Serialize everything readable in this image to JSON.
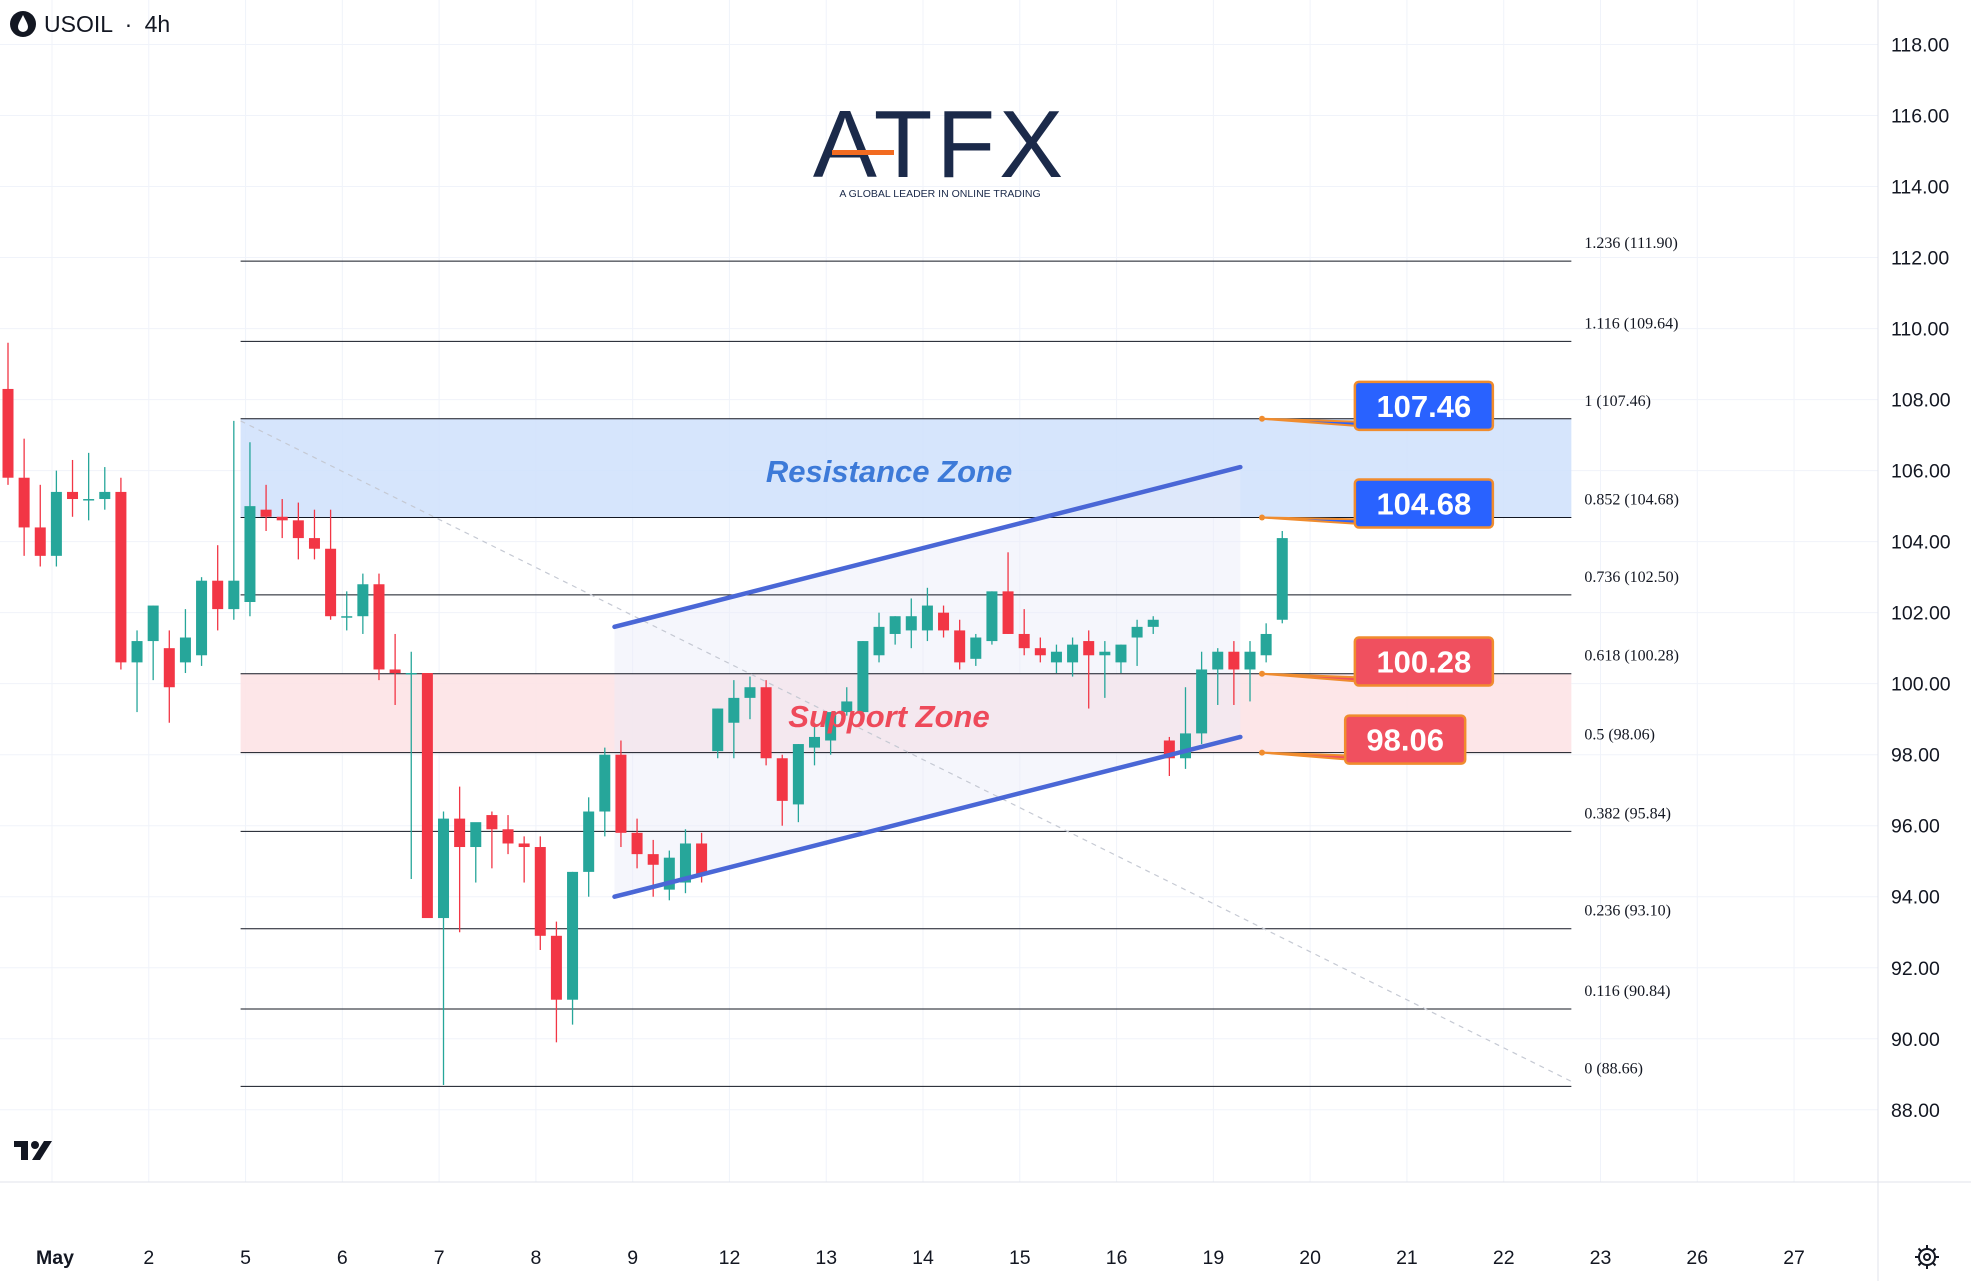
{
  "header": {
    "symbol": "USOIL",
    "separator": "·",
    "interval": "4h"
  },
  "logo": {
    "brand": "ATFX",
    "tagline": "A GLOBAL LEADER IN ONLINE TRADING"
  },
  "colors": {
    "up": "#26a69a",
    "down": "#f23645",
    "resistance_fill": "#cfe0fb",
    "support_fill": "#fde3e5",
    "channel": "#4a67d6",
    "label_blue": "#2962ff",
    "label_red": "#f0505f",
    "label_border": "#f08c2e"
  },
  "icons": {
    "tv_logo": "tradingview-logo-icon",
    "settings": "gear-icon"
  },
  "chart_data": {
    "type": "candlestick",
    "title": "USOIL · 4h",
    "y_axis": {
      "ylim": [
        86.0,
        119.5
      ],
      "ticks": [
        "88.00",
        "90.00",
        "92.00",
        "94.00",
        "96.00",
        "98.00",
        "100.00",
        "102.00",
        "104.00",
        "106.00",
        "108.00",
        "110.00",
        "112.00",
        "114.00",
        "116.00",
        "118.00"
      ]
    },
    "x_axis": {
      "ticks": [
        {
          "x": 0,
          "label": "May"
        },
        {
          "x": 6,
          "label": "2"
        },
        {
          "x": 12,
          "label": "5"
        },
        {
          "x": 18,
          "label": "6"
        },
        {
          "x": 24,
          "label": "7"
        },
        {
          "x": 30,
          "label": "8"
        },
        {
          "x": 36,
          "label": "9"
        },
        {
          "x": 42,
          "label": "12"
        },
        {
          "x": 48,
          "label": "13"
        },
        {
          "x": 54,
          "label": "14"
        },
        {
          "x": 60,
          "label": "15"
        },
        {
          "x": 66,
          "label": "16"
        },
        {
          "x": 72,
          "label": "19"
        },
        {
          "x": 78,
          "label": "20"
        },
        {
          "x": 84,
          "label": "21"
        },
        {
          "x": 90,
          "label": "22"
        },
        {
          "x": 96,
          "label": "23"
        },
        {
          "x": 102,
          "label": "26"
        },
        {
          "x": 108,
          "label": "27"
        }
      ]
    },
    "candles": [
      {
        "o": 108.3,
        "h": 109.6,
        "l": 105.6,
        "c": 105.8
      },
      {
        "o": 105.8,
        "h": 106.9,
        "l": 103.6,
        "c": 104.4
      },
      {
        "o": 104.4,
        "h": 105.6,
        "l": 103.3,
        "c": 103.6
      },
      {
        "o": 103.6,
        "h": 106.0,
        "l": 103.3,
        "c": 105.4
      },
      {
        "o": 105.4,
        "h": 106.3,
        "l": 104.7,
        "c": 105.2
      },
      {
        "o": 105.2,
        "h": 106.5,
        "l": 104.6,
        "c": 105.2
      },
      {
        "o": 105.2,
        "h": 106.1,
        "l": 104.9,
        "c": 105.4
      },
      {
        "o": 105.4,
        "h": 105.8,
        "l": 100.4,
        "c": 100.6
      },
      {
        "o": 100.6,
        "h": 101.5,
        "l": 99.2,
        "c": 101.2
      },
      {
        "o": 101.2,
        "h": 102.2,
        "l": 100.1,
        "c": 102.2
      },
      {
        "o": 101.0,
        "h": 101.5,
        "l": 98.9,
        "c": 99.9
      },
      {
        "o": 100.6,
        "h": 102.1,
        "l": 100.3,
        "c": 101.3
      },
      {
        "o": 100.8,
        "h": 103.0,
        "l": 100.5,
        "c": 102.9
      },
      {
        "o": 102.9,
        "h": 103.9,
        "l": 101.5,
        "c": 102.1
      },
      {
        "o": 102.1,
        "h": 107.4,
        "l": 101.8,
        "c": 102.9
      },
      {
        "o": 102.3,
        "h": 106.8,
        "l": 101.9,
        "c": 105.0
      },
      {
        "o": 104.9,
        "h": 105.6,
        "l": 104.3,
        "c": 104.7
      },
      {
        "o": 104.7,
        "h": 105.2,
        "l": 104.1,
        "c": 104.6
      },
      {
        "o": 104.6,
        "h": 105.1,
        "l": 103.5,
        "c": 104.1
      },
      {
        "o": 104.1,
        "h": 104.9,
        "l": 103.5,
        "c": 103.8
      },
      {
        "o": 103.8,
        "h": 104.9,
        "l": 101.8,
        "c": 101.9
      },
      {
        "o": 101.9,
        "h": 102.6,
        "l": 101.5,
        "c": 101.9
      },
      {
        "o": 101.9,
        "h": 103.1,
        "l": 101.4,
        "c": 102.8
      },
      {
        "o": 102.8,
        "h": 103.1,
        "l": 100.1,
        "c": 100.4
      },
      {
        "o": 100.4,
        "h": 101.4,
        "l": 99.4,
        "c": 100.3
      },
      {
        "o": 100.3,
        "h": 100.9,
        "l": 94.5,
        "c": 100.3
      },
      {
        "o": 100.3,
        "h": 100.3,
        "l": 93.4,
        "c": 93.4
      },
      {
        "o": 93.4,
        "h": 96.4,
        "l": 88.7,
        "c": 96.2
      },
      {
        "o": 96.2,
        "h": 97.1,
        "l": 93.0,
        "c": 95.4
      },
      {
        "o": 95.4,
        "h": 96.0,
        "l": 94.4,
        "c": 96.1
      },
      {
        "o": 96.3,
        "h": 96.4,
        "l": 94.8,
        "c": 95.9
      },
      {
        "o": 95.9,
        "h": 96.3,
        "l": 95.2,
        "c": 95.5
      },
      {
        "o": 95.5,
        "h": 95.7,
        "l": 94.4,
        "c": 95.4
      },
      {
        "o": 95.4,
        "h": 95.7,
        "l": 92.5,
        "c": 92.9
      },
      {
        "o": 92.9,
        "h": 93.3,
        "l": 89.9,
        "c": 91.1
      },
      {
        "o": 91.1,
        "h": 94.7,
        "l": 90.4,
        "c": 94.7
      },
      {
        "o": 94.7,
        "h": 96.8,
        "l": 94.0,
        "c": 96.4
      },
      {
        "o": 96.4,
        "h": 98.2,
        "l": 95.7,
        "c": 98.0
      },
      {
        "o": 98.0,
        "h": 98.4,
        "l": 95.4,
        "c": 95.8
      },
      {
        "o": 95.8,
        "h": 96.2,
        "l": 94.8,
        "c": 95.2
      },
      {
        "o": 95.2,
        "h": 95.6,
        "l": 94.0,
        "c": 94.9
      },
      {
        "o": 94.2,
        "h": 95.3,
        "l": 93.9,
        "c": 95.1
      },
      {
        "o": 94.4,
        "h": 95.9,
        "l": 94.1,
        "c": 95.5
      },
      {
        "o": 95.5,
        "h": 95.8,
        "l": 94.4,
        "c": 94.6
      },
      {
        "o": 98.1,
        "h": 99.3,
        "l": 97.9,
        "c": 99.3
      },
      {
        "o": 98.9,
        "h": 100.1,
        "l": 97.9,
        "c": 99.6
      },
      {
        "o": 99.6,
        "h": 100.2,
        "l": 99.0,
        "c": 99.9
      },
      {
        "o": 99.9,
        "h": 100.1,
        "l": 97.7,
        "c": 97.9
      },
      {
        "o": 97.9,
        "h": 98.0,
        "l": 96.0,
        "c": 96.7
      },
      {
        "o": 96.6,
        "h": 98.3,
        "l": 96.1,
        "c": 98.3
      },
      {
        "o": 98.2,
        "h": 98.9,
        "l": 97.7,
        "c": 98.5
      },
      {
        "o": 98.4,
        "h": 99.2,
        "l": 98.0,
        "c": 99.2
      },
      {
        "o": 99.2,
        "h": 99.9,
        "l": 99.1,
        "c": 99.5
      },
      {
        "o": 99.2,
        "h": 101.2,
        "l": 99.0,
        "c": 101.2
      },
      {
        "o": 100.8,
        "h": 102.0,
        "l": 100.6,
        "c": 101.6
      },
      {
        "o": 101.4,
        "h": 101.9,
        "l": 101.1,
        "c": 101.9
      },
      {
        "o": 101.5,
        "h": 102.4,
        "l": 101.0,
        "c": 101.9
      },
      {
        "o": 101.5,
        "h": 102.7,
        "l": 101.2,
        "c": 102.2
      },
      {
        "o": 102.0,
        "h": 102.2,
        "l": 101.3,
        "c": 101.5
      },
      {
        "o": 101.5,
        "h": 101.8,
        "l": 100.4,
        "c": 100.6
      },
      {
        "o": 100.7,
        "h": 101.4,
        "l": 100.5,
        "c": 101.3
      },
      {
        "o": 101.2,
        "h": 102.6,
        "l": 101.1,
        "c": 102.6
      },
      {
        "o": 102.6,
        "h": 103.7,
        "l": 101.4,
        "c": 101.4
      },
      {
        "o": 101.4,
        "h": 102.1,
        "l": 100.8,
        "c": 101.0
      },
      {
        "o": 101.0,
        "h": 101.3,
        "l": 100.6,
        "c": 100.8
      },
      {
        "o": 100.6,
        "h": 101.1,
        "l": 100.3,
        "c": 100.9
      },
      {
        "o": 100.6,
        "h": 101.3,
        "l": 100.2,
        "c": 101.1
      },
      {
        "o": 101.2,
        "h": 101.5,
        "l": 99.3,
        "c": 100.8
      },
      {
        "o": 100.8,
        "h": 101.2,
        "l": 99.6,
        "c": 100.9
      },
      {
        "o": 100.6,
        "h": 101.1,
        "l": 100.3,
        "c": 101.1
      },
      {
        "o": 101.3,
        "h": 101.8,
        "l": 100.5,
        "c": 101.6
      },
      {
        "o": 101.6,
        "h": 101.9,
        "l": 101.4,
        "c": 101.8
      },
      {
        "o": 98.4,
        "h": 98.5,
        "l": 97.4,
        "c": 97.9
      },
      {
        "o": 97.9,
        "h": 99.9,
        "l": 97.6,
        "c": 98.6
      },
      {
        "o": 98.6,
        "h": 100.9,
        "l": 98.3,
        "c": 100.4
      },
      {
        "o": 100.4,
        "h": 101.0,
        "l": 99.4,
        "c": 100.9
      },
      {
        "o": 100.9,
        "h": 101.2,
        "l": 99.4,
        "c": 100.4
      },
      {
        "o": 100.4,
        "h": 101.2,
        "l": 99.5,
        "c": 100.9
      },
      {
        "o": 100.8,
        "h": 101.7,
        "l": 100.6,
        "c": 101.4
      },
      {
        "o": 101.8,
        "h": 104.3,
        "l": 101.7,
        "c": 104.1
      }
    ],
    "fibonacci": [
      {
        "ratio": "0",
        "price": 88.66,
        "label": "0 (88.66)"
      },
      {
        "ratio": "0.116",
        "price": 90.84,
        "label": "0.116 (90.84)"
      },
      {
        "ratio": "0.236",
        "price": 93.1,
        "label": "0.236 (93.10)"
      },
      {
        "ratio": "0.382",
        "price": 95.84,
        "label": "0.382 (95.84)"
      },
      {
        "ratio": "0.5",
        "price": 98.06,
        "label": "0.5 (98.06)"
      },
      {
        "ratio": "0.618",
        "price": 100.28,
        "label": "0.618 (100.28)"
      },
      {
        "ratio": "0.736",
        "price": 102.5,
        "label": "0.736 (102.50)"
      },
      {
        "ratio": "0.852",
        "price": 104.68,
        "label": "0.852 (104.68)"
      },
      {
        "ratio": "1",
        "price": 107.46,
        "label": "1 (107.46)"
      },
      {
        "ratio": "1.116",
        "price": 109.64,
        "label": "1.116 (109.64)"
      },
      {
        "ratio": "1.236",
        "price": 111.9,
        "label": "1.236 (111.90)"
      }
    ],
    "fib_range": {
      "x_start": 13.8,
      "x_end": 95.0
    },
    "zones": [
      {
        "name": "Resistance Zone",
        "low": 104.68,
        "high": 107.46,
        "x_start": 13.8,
        "x_end": 95.0,
        "label_x": 54.0,
        "label_y": 105.9,
        "kind": "resistance"
      },
      {
        "name": "Support Zone",
        "low": 98.06,
        "high": 100.28,
        "x_start": 13.8,
        "x_end": 95.0,
        "label_x": 54.0,
        "label_y": 99.0,
        "kind": "support"
      }
    ],
    "channel": {
      "upper": {
        "x1": 37.6,
        "y1": 101.6,
        "x2": 76.4,
        "y2": 106.1
      },
      "lower": {
        "x1": 37.6,
        "y1": 94.0,
        "x2": 76.4,
        "y2": 98.5
      },
      "shade": {
        "x_start": 37.6,
        "x_end": 76.4
      }
    },
    "trendline": {
      "x1": 13.8,
      "y1": 107.4,
      "x2": 95.0,
      "y2": 88.8
    },
    "price_labels": [
      {
        "text": "107.46",
        "price": 107.46,
        "box_x": 83.5,
        "box_y": 108.5,
        "kind": "blue"
      },
      {
        "text": "104.68",
        "price": 104.68,
        "box_x": 83.5,
        "box_y": 105.75,
        "kind": "blue"
      },
      {
        "text": "100.28",
        "price": 100.28,
        "box_x": 83.5,
        "box_y": 101.3,
        "kind": "red"
      },
      {
        "text": "98.06",
        "price": 98.06,
        "box_x": 82.9,
        "box_y": 99.1,
        "kind": "red"
      }
    ],
    "grid": true,
    "legend": "none"
  }
}
